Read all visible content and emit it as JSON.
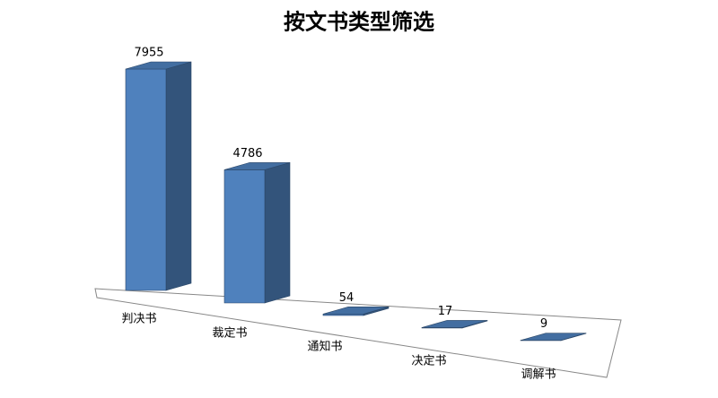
{
  "chart_data": {
    "type": "bar3d",
    "title": "按文书类型筛选",
    "categories": [
      "判决书",
      "裁定书",
      "通知书",
      "决定书",
      "调解书"
    ],
    "values": [
      7955,
      4786,
      54,
      17,
      9
    ],
    "color": "#4f81bd"
  }
}
